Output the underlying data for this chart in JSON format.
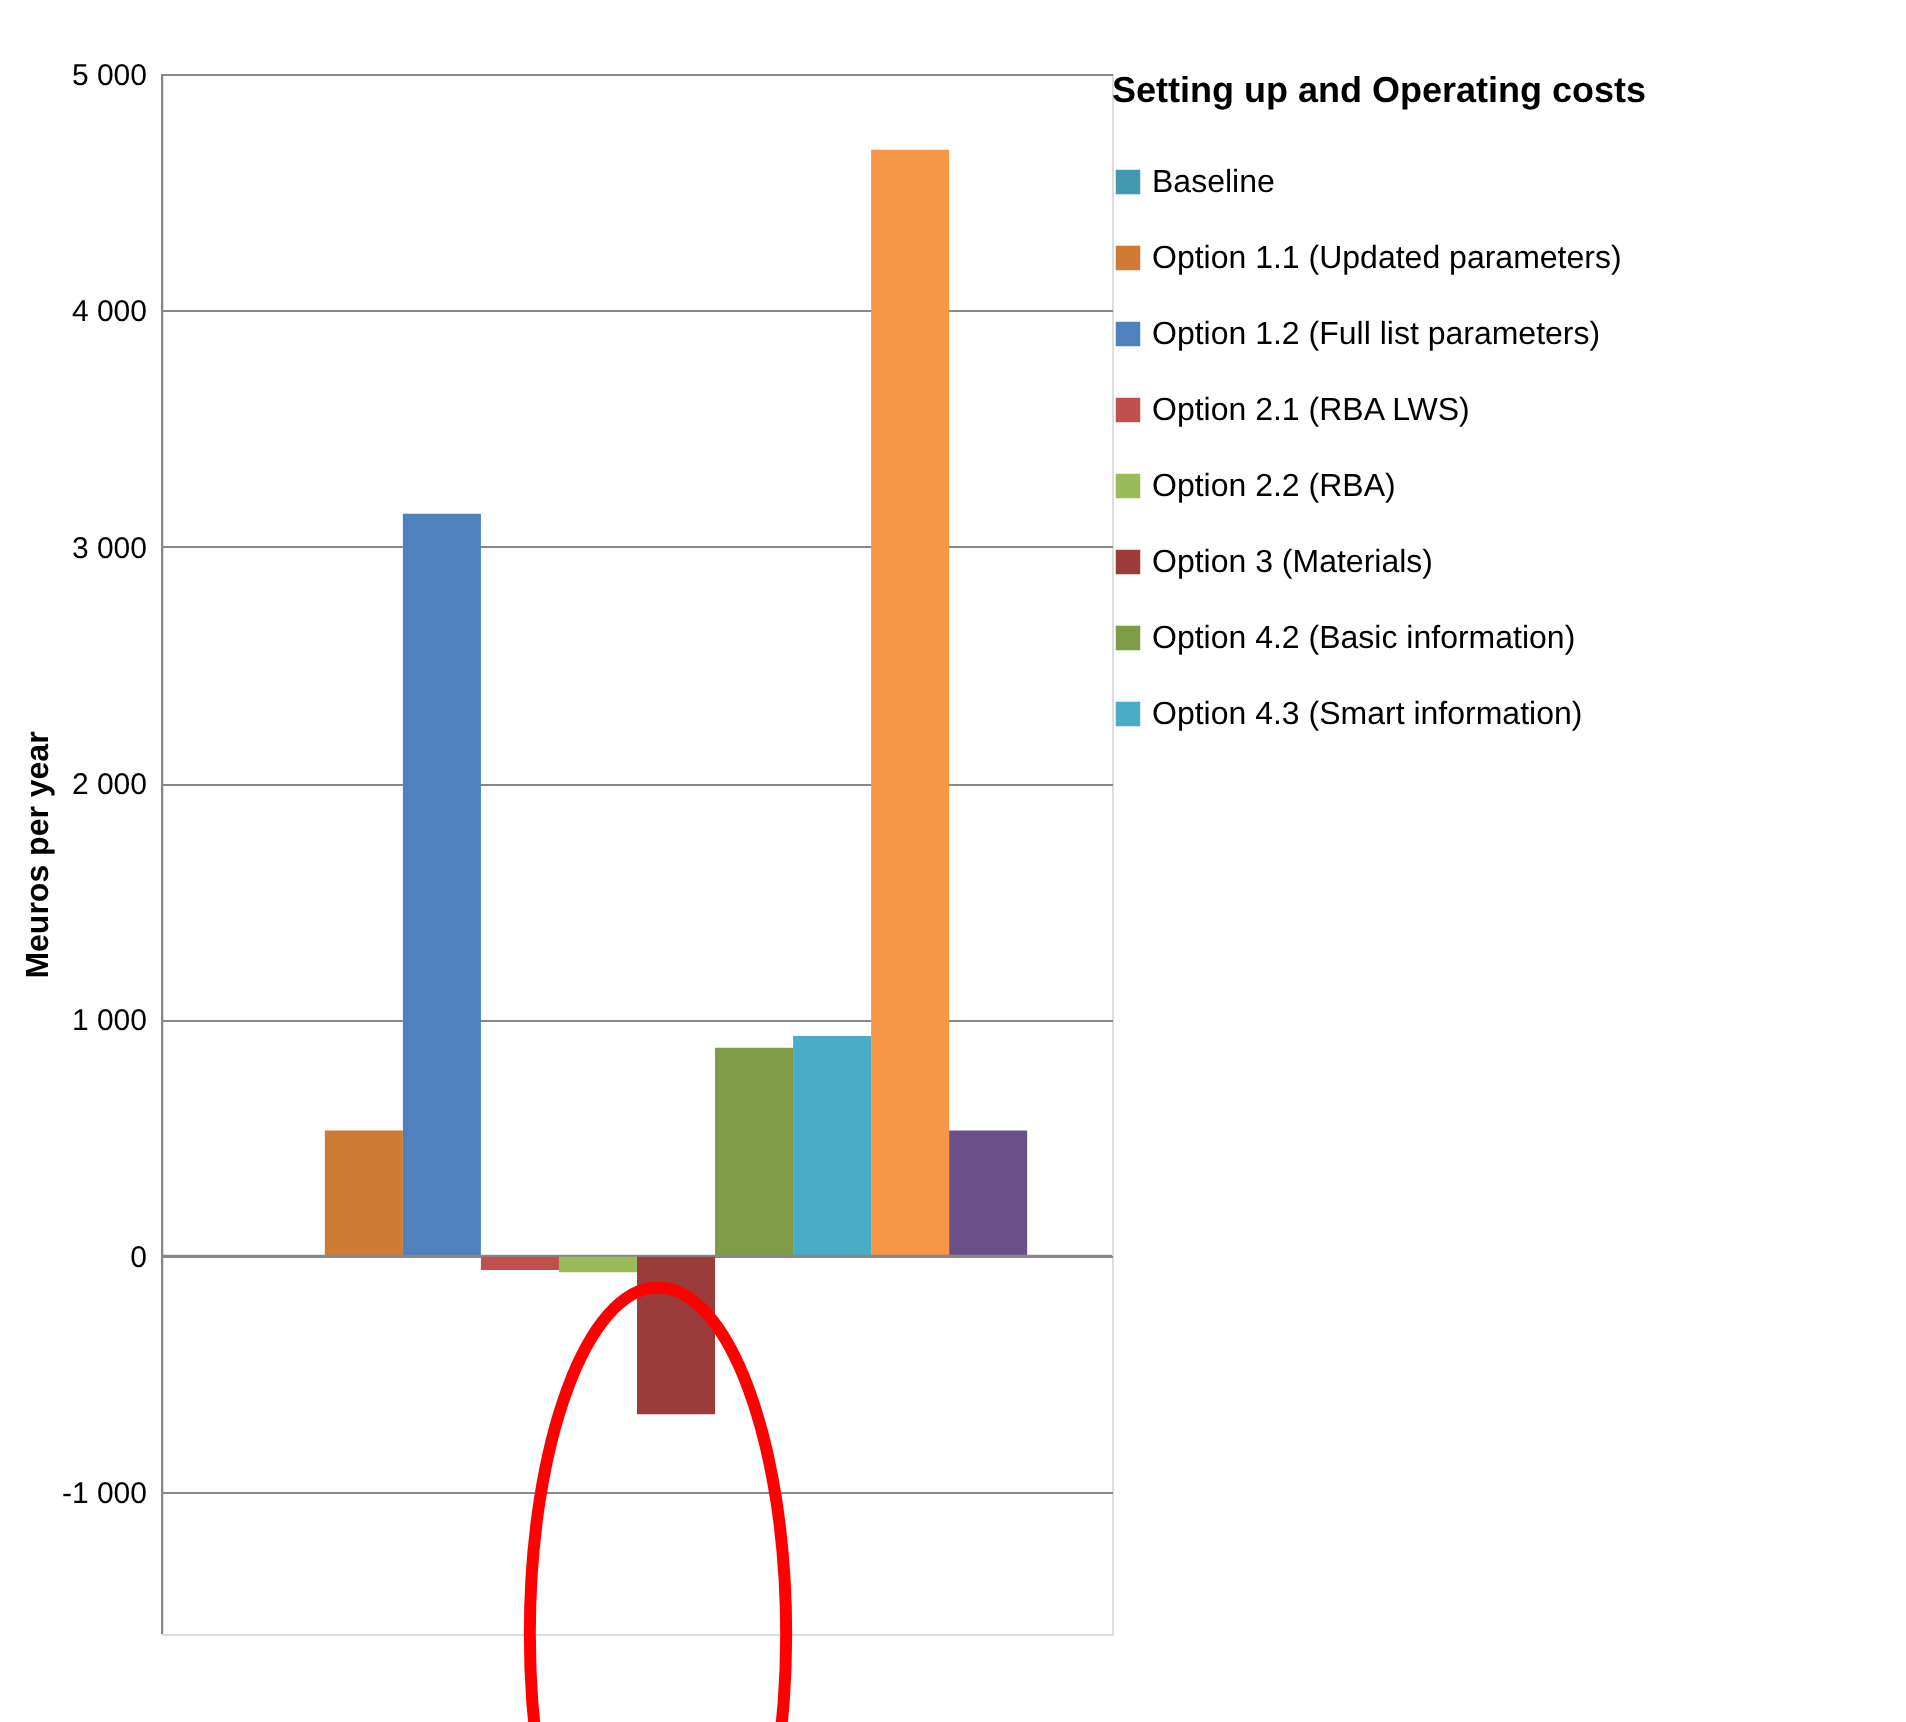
{
  "chart_data": {
    "type": "bar",
    "ylabel": "Meuros per year",
    "legend_title": "Setting up and Operating costs",
    "categories": [
      null
    ],
    "series": [
      {
        "name": "Baseline",
        "color": "#4198af",
        "values": [
          0
        ]
      },
      {
        "name": "Option 1.1 (Updated parameters)",
        "color": "#d07b35",
        "values": [
          530
        ]
      },
      {
        "name": "Option 1.2 (Full list parameters)",
        "color": "#4f81bd",
        "values": [
          3140
        ]
      },
      {
        "name": "Option 2.1 (RBA LWS)",
        "color": "#c0504d",
        "values": [
          -60
        ]
      },
      {
        "name": "Option 2.2 (RBA)",
        "color": "#9bbb59",
        "values": [
          -70
        ]
      },
      {
        "name": "Option 3 (Materials)",
        "color": "#9b3c3b",
        "values": [
          -670
        ]
      },
      {
        "name": "Option 4.2 (Basic information)",
        "color": "#7f9b48",
        "values": [
          880
        ]
      },
      {
        "name": "Option 4.3 (Smart information)",
        "color": "#4bacc6",
        "values": [
          930
        ]
      },
      {
        "color": "#f79646",
        "values": [
          4680
        ]
      },
      {
        "color": "#6a5088",
        "values": [
          530
        ]
      }
    ],
    "ylim": [
      -1600,
      5000
    ],
    "yticks": [
      {
        "value": -1000,
        "label": "-1 000"
      },
      {
        "value": 0,
        "label": "0"
      },
      {
        "value": 1000,
        "label": "1 000"
      },
      {
        "value": 2000,
        "label": "2 000"
      },
      {
        "value": 3000,
        "label": "3 000"
      },
      {
        "value": 4000,
        "label": "4 000"
      },
      {
        "value": 5000,
        "label": "5 000"
      }
    ],
    "grid": "y",
    "legend": "top right",
    "tick_labels": "y"
  }
}
